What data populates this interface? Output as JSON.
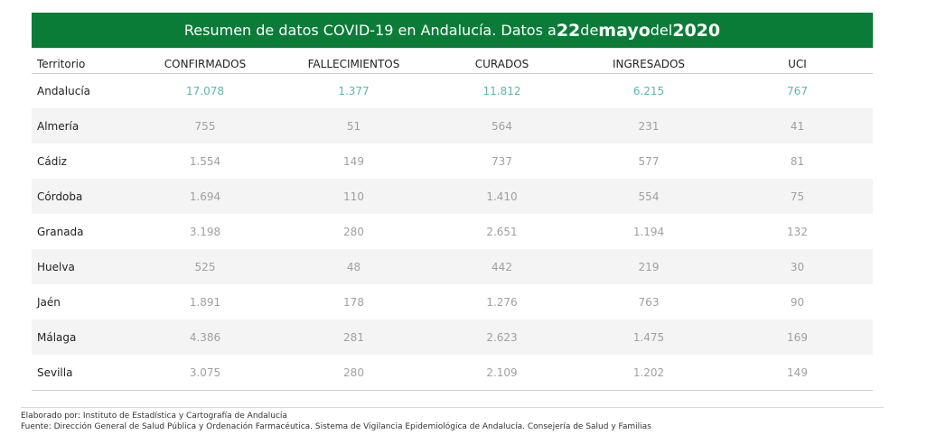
{
  "banner": {
    "prefix": "Resumen de datos COVID-19 en Andalucía. Datos a ",
    "day": "22",
    "de1": " de ",
    "month": "mayo",
    "de2": " del ",
    "year": "2020"
  },
  "headers": [
    "Territorio",
    "CONFIRMADOS",
    "FALLECIMIENTOS",
    "CURADOS",
    "INGRESADOS",
    "UCI"
  ],
  "rows": [
    [
      "Andalucía",
      "17.078",
      "1.377",
      "11.812",
      "6.215",
      "767"
    ],
    [
      "Almería",
      "755",
      "51",
      "564",
      "231",
      "41"
    ],
    [
      "Cádiz",
      "1.554",
      "149",
      "737",
      "577",
      "81"
    ],
    [
      "Córdoba",
      "1.694",
      "110",
      "1.410",
      "554",
      "75"
    ],
    [
      "Granada",
      "3.198",
      "280",
      "2.651",
      "1.194",
      "132"
    ],
    [
      "Huelva",
      "525",
      "48",
      "442",
      "219",
      "30"
    ],
    [
      "Jaén",
      "1.891",
      "178",
      "1.276",
      "763",
      "90"
    ],
    [
      "Málaga",
      "4.386",
      "281",
      "2.623",
      "1.475",
      "169"
    ],
    [
      "Sevilla",
      "3.075",
      "280",
      "2.109",
      "1.202",
      "149"
    ]
  ],
  "footer": {
    "line1": "Elaborado por: Instituto de Estadística y Cartografía de Andalucía",
    "line2": "Fuente: Dirección General de Salud Pública y Ordenación Farmacéutica. Sistema de Vigilancia Epidemiológica de Andalucía. Consejería de Salud y Familias"
  },
  "colors": {
    "banner": "#0a7c37",
    "total_values": "#5bb6b0",
    "values": "#a0a0a0"
  }
}
